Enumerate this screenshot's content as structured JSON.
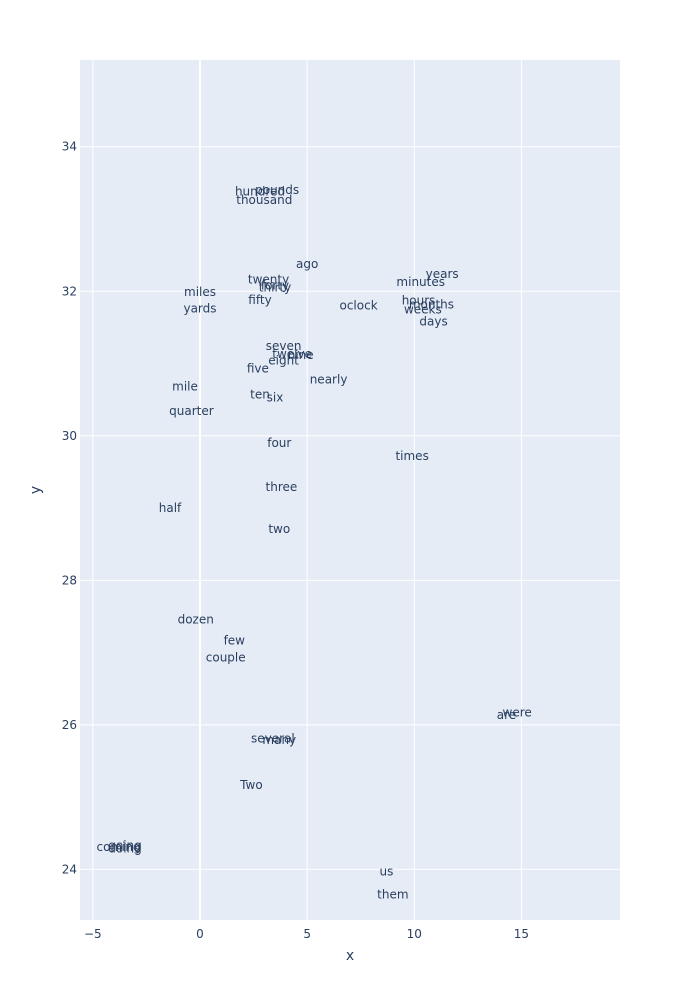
{
  "chart_data": {
    "type": "scatter",
    "mode": "text",
    "title": "",
    "xlabel": "x",
    "ylabel": "y",
    "xlim": [
      -5.6,
      19.6
    ],
    "ylim": [
      23.3,
      35.2
    ],
    "xticks": [
      -5,
      0,
      5,
      10,
      15
    ],
    "yticks": [
      24,
      26,
      28,
      30,
      32,
      34
    ],
    "grid": true,
    "legend": "none",
    "colors": {
      "plot_bg": "#e5ecf6",
      "grid": "#ffffff",
      "text": "#2a3f5f",
      "page_bg": "#ffffff"
    },
    "points": [
      {
        "text": "hundred",
        "x": 2.8,
        "y": 33.38
      },
      {
        "text": "pounds",
        "x": 3.6,
        "y": 33.4
      },
      {
        "text": "thousand",
        "x": 3.0,
        "y": 33.26
      },
      {
        "text": "ago",
        "x": 5.0,
        "y": 32.38
      },
      {
        "text": "years",
        "x": 11.3,
        "y": 32.24
      },
      {
        "text": "twenty",
        "x": 3.2,
        "y": 32.16
      },
      {
        "text": "minutes",
        "x": 10.3,
        "y": 32.13
      },
      {
        "text": "forty",
        "x": 3.5,
        "y": 32.08
      },
      {
        "text": "thirty",
        "x": 3.5,
        "y": 32.05
      },
      {
        "text": "miles",
        "x": 0.0,
        "y": 31.99
      },
      {
        "text": "fifty",
        "x": 2.8,
        "y": 31.88
      },
      {
        "text": "hours",
        "x": 10.2,
        "y": 31.87
      },
      {
        "text": "months",
        "x": 10.8,
        "y": 31.82
      },
      {
        "text": "oclock",
        "x": 7.4,
        "y": 31.8
      },
      {
        "text": "yards",
        "x": 0.0,
        "y": 31.76
      },
      {
        "text": "weeks",
        "x": 10.4,
        "y": 31.75
      },
      {
        "text": "days",
        "x": 10.9,
        "y": 31.58
      },
      {
        "text": "seven",
        "x": 3.9,
        "y": 31.24
      },
      {
        "text": "twelve",
        "x": 4.3,
        "y": 31.13
      },
      {
        "text": "nine",
        "x": 4.7,
        "y": 31.12
      },
      {
        "text": "eight",
        "x": 3.9,
        "y": 31.04
      },
      {
        "text": "five",
        "x": 2.7,
        "y": 30.93
      },
      {
        "text": "nearly",
        "x": 6.0,
        "y": 30.78
      },
      {
        "text": "mile",
        "x": -0.7,
        "y": 30.68
      },
      {
        "text": "ten",
        "x": 2.8,
        "y": 30.57
      },
      {
        "text": "six",
        "x": 3.5,
        "y": 30.53
      },
      {
        "text": "quarter",
        "x": -0.4,
        "y": 30.34
      },
      {
        "text": "four",
        "x": 3.7,
        "y": 29.9
      },
      {
        "text": "times",
        "x": 9.9,
        "y": 29.72
      },
      {
        "text": "three",
        "x": 3.8,
        "y": 29.29
      },
      {
        "text": "half",
        "x": -1.4,
        "y": 29.0
      },
      {
        "text": "two",
        "x": 3.7,
        "y": 28.71
      },
      {
        "text": "dozen",
        "x": -0.2,
        "y": 27.46
      },
      {
        "text": "few",
        "x": 1.6,
        "y": 27.17
      },
      {
        "text": "couple",
        "x": 1.2,
        "y": 26.93
      },
      {
        "text": "were",
        "x": 14.8,
        "y": 26.17
      },
      {
        "text": "are",
        "x": 14.3,
        "y": 26.14
      },
      {
        "text": "several",
        "x": 3.4,
        "y": 25.81
      },
      {
        "text": "many",
        "x": 3.7,
        "y": 25.79
      },
      {
        "text": "Two",
        "x": 2.4,
        "y": 25.17
      },
      {
        "text": "coming",
        "x": -3.8,
        "y": 24.31
      },
      {
        "text": "going",
        "x": -3.5,
        "y": 24.33
      },
      {
        "text": "doing",
        "x": -3.5,
        "y": 24.29
      },
      {
        "text": "us",
        "x": 8.7,
        "y": 23.97
      },
      {
        "text": "them",
        "x": 9.0,
        "y": 23.65
      }
    ]
  }
}
